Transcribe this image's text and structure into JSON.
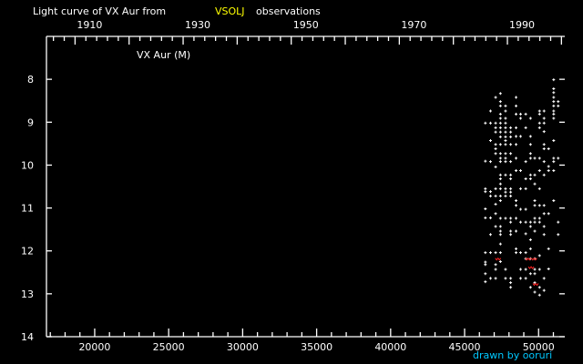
{
  "chart_data": {
    "type": "scatter",
    "title_prefix": "Light curve of VX Aur from",
    "title_source": "VSOLJ",
    "title_suffix": "observations",
    "series_label": "VX Aur (M)",
    "credit": "drawn by ooruri",
    "xlabel": "",
    "ylabel": "",
    "xlim": [
      16740,
      51770
    ],
    "ylim": [
      14,
      7
    ],
    "y_inverted": true,
    "x_ticks": [
      20000,
      25000,
      30000,
      35000,
      40000,
      45000,
      50000
    ],
    "x_tick_labels": [
      "20000",
      "25000",
      "30000",
      "35000",
      "40000",
      "45000",
      "50000"
    ],
    "y_ticks": [
      8,
      9,
      10,
      11,
      12,
      13,
      14
    ],
    "y_tick_labels": [
      "8",
      "9",
      "10",
      "11",
      "12",
      "13",
      "14"
    ],
    "year_ticks": [
      1910,
      1930,
      1950,
      1970,
      1990
    ],
    "year_tick_labels": [
      "1910",
      "1930",
      "1950",
      "1970",
      "1990"
    ],
    "grid": false,
    "colors": {
      "background": "#000000",
      "points": "#ffffff",
      "source": "#ffff00",
      "credit": "#00c8ff",
      "fainter_than": "#ff2020"
    },
    "observations": [
      [
        46404,
        9.02
      ],
      [
        46404,
        9.91
      ],
      [
        46404,
        10.55
      ],
      [
        46404,
        10.62
      ],
      [
        46404,
        11.02
      ],
      [
        46404,
        11.23
      ],
      [
        46404,
        12.04
      ],
      [
        46404,
        12.26
      ],
      [
        46404,
        12.32
      ],
      [
        46404,
        12.53
      ],
      [
        46404,
        12.72
      ],
      [
        46751,
        8.74
      ],
      [
        46751,
        9.02
      ],
      [
        46751,
        9.43
      ],
      [
        46751,
        9.92
      ],
      [
        46751,
        10.62
      ],
      [
        46751,
        10.72
      ],
      [
        46751,
        11.23
      ],
      [
        46751,
        11.62
      ],
      [
        46751,
        12.04
      ],
      [
        46751,
        12.64
      ],
      [
        47095,
        8.42
      ],
      [
        47095,
        9.02
      ],
      [
        47095,
        9.13
      ],
      [
        47095,
        9.23
      ],
      [
        47095,
        9.52
      ],
      [
        47095,
        9.62
      ],
      [
        47095,
        9.73
      ],
      [
        47095,
        10.04
      ],
      [
        47095,
        10.55
      ],
      [
        47095,
        10.72
      ],
      [
        47095,
        10.91
      ],
      [
        47095,
        11.13
      ],
      [
        47095,
        11.43
      ],
      [
        47095,
        12.04
      ],
      [
        47095,
        12.32
      ],
      [
        47095,
        12.43
      ],
      [
        47095,
        12.64
      ],
      [
        47421,
        8.33
      ],
      [
        47421,
        8.52
      ],
      [
        47421,
        8.62
      ],
      [
        47421,
        8.81
      ],
      [
        47421,
        8.91
      ],
      [
        47421,
        9.02
      ],
      [
        47421,
        9.13
      ],
      [
        47421,
        9.23
      ],
      [
        47421,
        9.34
      ],
      [
        47421,
        9.52
      ],
      [
        47421,
        9.73
      ],
      [
        47421,
        9.84
      ],
      [
        47421,
        9.92
      ],
      [
        47421,
        10.23
      ],
      [
        47421,
        10.32
      ],
      [
        47421,
        10.44
      ],
      [
        47421,
        10.55
      ],
      [
        47421,
        10.72
      ],
      [
        47421,
        10.83
      ],
      [
        47421,
        11.24
      ],
      [
        47421,
        11.43
      ],
      [
        47421,
        11.54
      ],
      [
        47421,
        11.62
      ],
      [
        47421,
        11.84
      ],
      [
        47421,
        12.04
      ],
      [
        47421,
        12.25
      ],
      [
        47765,
        8.62
      ],
      [
        47765,
        8.74
      ],
      [
        47765,
        8.91
      ],
      [
        47765,
        9.02
      ],
      [
        47765,
        9.13
      ],
      [
        47765,
        9.23
      ],
      [
        47765,
        9.34
      ],
      [
        47765,
        9.43
      ],
      [
        47765,
        9.52
      ],
      [
        47765,
        9.73
      ],
      [
        47765,
        9.84
      ],
      [
        47765,
        9.92
      ],
      [
        47765,
        10.23
      ],
      [
        47765,
        10.55
      ],
      [
        47765,
        10.63
      ],
      [
        47765,
        10.72
      ],
      [
        47765,
        11.24
      ],
      [
        47765,
        12.43
      ],
      [
        47765,
        12.64
      ],
      [
        48112,
        9.13
      ],
      [
        48112,
        9.23
      ],
      [
        48112,
        9.34
      ],
      [
        48112,
        9.52
      ],
      [
        48112,
        9.73
      ],
      [
        48112,
        9.92
      ],
      [
        48112,
        10.23
      ],
      [
        48112,
        10.32
      ],
      [
        48112,
        10.55
      ],
      [
        48112,
        10.63
      ],
      [
        48112,
        10.72
      ],
      [
        48112,
        11.24
      ],
      [
        48112,
        11.33
      ],
      [
        48112,
        11.54
      ],
      [
        48112,
        11.62
      ],
      [
        48112,
        12.64
      ],
      [
        48112,
        12.74
      ],
      [
        48112,
        12.85
      ],
      [
        48478,
        8.42
      ],
      [
        48478,
        8.62
      ],
      [
        48478,
        8.81
      ],
      [
        48478,
        9.13
      ],
      [
        48478,
        9.33
      ],
      [
        48478,
        9.52
      ],
      [
        48478,
        9.84
      ],
      [
        48478,
        10.13
      ],
      [
        48478,
        10.83
      ],
      [
        48478,
        10.94
      ],
      [
        48478,
        11.24
      ],
      [
        48478,
        11.54
      ],
      [
        48478,
        11.95
      ],
      [
        48478,
        12.04
      ],
      [
        48783,
        8.81
      ],
      [
        48783,
        8.91
      ],
      [
        48783,
        9.33
      ],
      [
        48783,
        10.13
      ],
      [
        48783,
        10.55
      ],
      [
        48783,
        11.03
      ],
      [
        48783,
        11.33
      ],
      [
        48783,
        12.04
      ],
      [
        48783,
        12.43
      ],
      [
        48783,
        12.64
      ],
      [
        49130,
        8.81
      ],
      [
        49130,
        9.13
      ],
      [
        49130,
        9.92
      ],
      [
        49130,
        10.32
      ],
      [
        49130,
        10.55
      ],
      [
        49130,
        11.03
      ],
      [
        49130,
        11.33
      ],
      [
        49130,
        11.6
      ],
      [
        49130,
        12.04
      ],
      [
        49130,
        12.18
      ],
      [
        49130,
        12.43
      ],
      [
        49130,
        12.64
      ],
      [
        49453,
        8.91
      ],
      [
        49453,
        9.33
      ],
      [
        49453,
        9.52
      ],
      [
        49453,
        9.73
      ],
      [
        49453,
        9.84
      ],
      [
        49453,
        10.23
      ],
      [
        49453,
        10.32
      ],
      [
        49453,
        11.33
      ],
      [
        49453,
        11.43
      ],
      [
        49453,
        11.74
      ],
      [
        49453,
        11.95
      ],
      [
        49453,
        12.18
      ],
      [
        49453,
        12.53
      ],
      [
        49453,
        12.85
      ],
      [
        49740,
        9.84
      ],
      [
        49740,
        10.23
      ],
      [
        49740,
        10.44
      ],
      [
        49740,
        10.83
      ],
      [
        49740,
        10.94
      ],
      [
        49740,
        11.24
      ],
      [
        49740,
        11.33
      ],
      [
        49740,
        11.54
      ],
      [
        49740,
        12.18
      ],
      [
        49740,
        12.43
      ],
      [
        49740,
        12.53
      ],
      [
        49740,
        12.74
      ],
      [
        49740,
        12.96
      ],
      [
        50063,
        8.74
      ],
      [
        50063,
        8.81
      ],
      [
        50063,
        9.02
      ],
      [
        50063,
        9.13
      ],
      [
        50063,
        9.84
      ],
      [
        50063,
        10.13
      ],
      [
        50063,
        10.55
      ],
      [
        50063,
        10.94
      ],
      [
        50063,
        11.24
      ],
      [
        50063,
        11.33
      ],
      [
        50063,
        12.11
      ],
      [
        50063,
        12.43
      ],
      [
        50063,
        12.85
      ],
      [
        50063,
        13.03
      ],
      [
        50369,
        8.74
      ],
      [
        50369,
        8.91
      ],
      [
        50369,
        9.02
      ],
      [
        50369,
        9.22
      ],
      [
        50369,
        9.52
      ],
      [
        50369,
        9.62
      ],
      [
        50369,
        9.92
      ],
      [
        50369,
        10.23
      ],
      [
        50369,
        10.94
      ],
      [
        50369,
        11.13
      ],
      [
        50369,
        11.43
      ],
      [
        50369,
        11.62
      ],
      [
        50369,
        12.64
      ],
      [
        50369,
        12.92
      ],
      [
        50674,
        9.62
      ],
      [
        50674,
        10.03
      ],
      [
        50674,
        10.13
      ],
      [
        50674,
        11.13
      ],
      [
        50674,
        11.95
      ],
      [
        50674,
        12.42
      ],
      [
        51020,
        8.01
      ],
      [
        51020,
        8.22
      ],
      [
        51020,
        8.31
      ],
      [
        51020,
        8.42
      ],
      [
        51020,
        8.52
      ],
      [
        51020,
        8.62
      ],
      [
        51020,
        8.74
      ],
      [
        51020,
        8.81
      ],
      [
        51020,
        8.91
      ],
      [
        51020,
        9.43
      ],
      [
        51020,
        9.84
      ],
      [
        51020,
        9.92
      ],
      [
        51020,
        10.13
      ],
      [
        51020,
        10.83
      ],
      [
        51325,
        8.52
      ],
      [
        51325,
        8.62
      ],
      [
        51325,
        9.84
      ],
      [
        51325,
        11.33
      ],
      [
        51325,
        11.62
      ]
    ],
    "fainter_than": [
      [
        47259,
        12.19
      ],
      [
        49292,
        12.19
      ],
      [
        49495,
        12.39
      ],
      [
        49698,
        12.19
      ],
      [
        49800,
        12.78
      ]
    ]
  }
}
